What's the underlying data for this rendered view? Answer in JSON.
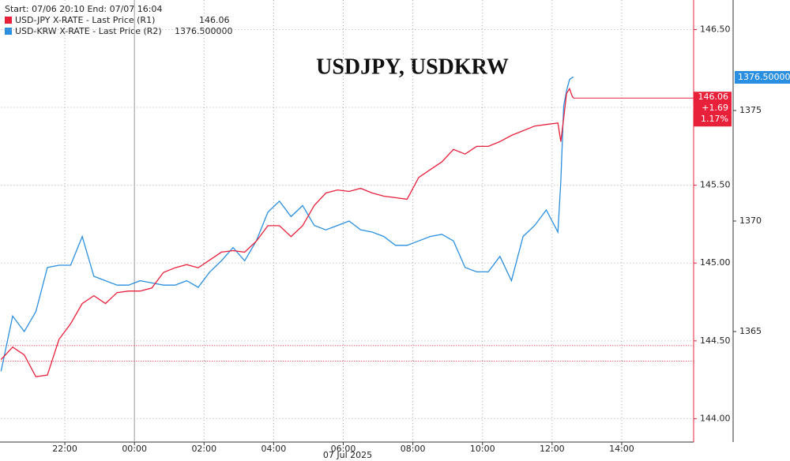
{
  "chart_data": {
    "type": "line",
    "title": "USDJPY, USDKRW",
    "header": "Start: 07/06 20:10 End: 07/07 16:04",
    "x_date_label": "07 Jul 2025",
    "x": [
      "2025-07-06T20:10",
      "2025-07-06T20:30",
      "2025-07-06T20:50",
      "2025-07-06T21:10",
      "2025-07-06T21:30",
      "2025-07-06T21:50",
      "2025-07-06T22:10",
      "2025-07-06T22:30",
      "2025-07-06T22:50",
      "2025-07-06T23:10",
      "2025-07-06T23:30",
      "2025-07-06T23:50",
      "2025-07-07T00:10",
      "2025-07-07T00:30",
      "2025-07-07T00:50",
      "2025-07-07T01:10",
      "2025-07-07T01:30",
      "2025-07-07T01:50",
      "2025-07-07T02:10",
      "2025-07-07T02:30",
      "2025-07-07T02:50",
      "2025-07-07T03:10",
      "2025-07-07T03:30",
      "2025-07-07T03:50",
      "2025-07-07T04:10",
      "2025-07-07T04:30",
      "2025-07-07T04:50",
      "2025-07-07T05:10",
      "2025-07-07T05:30",
      "2025-07-07T05:50",
      "2025-07-07T06:10",
      "2025-07-07T06:30",
      "2025-07-07T06:50",
      "2025-07-07T07:10",
      "2025-07-07T07:30",
      "2025-07-07T07:50",
      "2025-07-07T08:10",
      "2025-07-07T08:30",
      "2025-07-07T08:50",
      "2025-07-07T09:10",
      "2025-07-07T09:30",
      "2025-07-07T09:50",
      "2025-07-07T10:10",
      "2025-07-07T10:30",
      "2025-07-07T10:50",
      "2025-07-07T11:10",
      "2025-07-07T11:30",
      "2025-07-07T11:50",
      "2025-07-07T12:10",
      "2025-07-07T12:15",
      "2025-07-07T12:20",
      "2025-07-07T12:25",
      "2025-07-07T12:30",
      "2025-07-07T12:35",
      "2025-07-07T12:37"
    ],
    "xlim": [
      "2025-07-06T20:10",
      "2025-07-07T16:04"
    ],
    "xticks": [
      {
        "value": "2025-07-06T22:00",
        "label": "22:00"
      },
      {
        "value": "2025-07-07T00:00",
        "label": "00:00"
      },
      {
        "value": "2025-07-07T02:00",
        "label": "02:00"
      },
      {
        "value": "2025-07-07T04:00",
        "label": "04:00"
      },
      {
        "value": "2025-07-07T06:00",
        "label": "06:00"
      },
      {
        "value": "2025-07-07T08:00",
        "label": "08:00"
      },
      {
        "value": "2025-07-07T10:00",
        "label": "10:00"
      },
      {
        "value": "2025-07-07T12:00",
        "label": "12:00"
      },
      {
        "value": "2025-07-07T14:00",
        "label": "14:00"
      }
    ],
    "day_divider": "2025-07-07T00:00",
    "ylim": [
      143.85,
      146.69
    ],
    "yticks": [
      {
        "value": 144,
        "label": "144.00"
      },
      {
        "value": 144.5,
        "label": "144.50"
      },
      {
        "value": 145,
        "label": "145.00"
      },
      {
        "value": 145.5,
        "label": "145.50"
      },
      {
        "value": 146,
        "label": "146.00"
      },
      {
        "value": 146.5,
        "label": "146.50"
      }
    ],
    "y2lim": [
      1360,
      1380
    ],
    "y2ticks": [
      1365,
      1370,
      1375
    ],
    "grid": true,
    "reference_lines": [
      144.47,
      144.37
    ],
    "series": [
      {
        "name": "USD-JPY X-RATE - Last Price (R1)",
        "legend_value": "146.06",
        "color": "#e8203a",
        "axis": "y",
        "tag": [
          "146.06",
          "+1.69",
          "1.17%"
        ],
        "values": [
          144.38,
          144.46,
          144.41,
          144.27,
          144.28,
          144.51,
          144.61,
          144.74,
          144.79,
          144.74,
          144.81,
          144.82,
          144.82,
          144.84,
          144.94,
          144.97,
          144.99,
          144.97,
          145.02,
          145.07,
          145.08,
          145.07,
          145.14,
          145.24,
          145.24,
          145.17,
          145.24,
          145.37,
          145.45,
          145.47,
          145.46,
          145.48,
          145.45,
          145.43,
          145.42,
          145.41,
          145.55,
          145.6,
          145.65,
          145.73,
          145.7,
          145.75,
          145.75,
          145.78,
          145.82,
          145.85,
          145.88,
          145.89,
          145.9,
          145.78,
          145.93,
          146.09,
          146.12,
          146.07,
          146.06
        ]
      },
      {
        "name": "USD-KRW X-RATE - Last Price (R2)",
        "legend_value": "1376.500000",
        "color": "#2a8fe0",
        "axis": "y2",
        "tag": [
          "1376.500000"
        ],
        "values": [
          1363.2,
          1365.7,
          1365.0,
          1365.9,
          1367.9,
          1368.0,
          1368.0,
          1369.3,
          1367.5,
          1367.3,
          1367.1,
          1367.1,
          1367.3,
          1367.2,
          1367.1,
          1367.1,
          1367.3,
          1367.0,
          1367.7,
          1368.2,
          1368.8,
          1368.2,
          1369.1,
          1370.4,
          1370.9,
          1370.2,
          1370.7,
          1369.8,
          1369.6,
          1369.8,
          1370.0,
          1369.6,
          1369.5,
          1369.3,
          1368.9,
          1368.9,
          1369.1,
          1369.3,
          1369.4,
          1369.1,
          1367.9,
          1367.7,
          1367.7,
          1368.4,
          1367.3,
          1369.3,
          1369.8,
          1370.5,
          1369.5,
          1371.8,
          1375.2,
          1375.9,
          1376.4,
          1376.5,
          1376.5
        ]
      }
    ]
  }
}
